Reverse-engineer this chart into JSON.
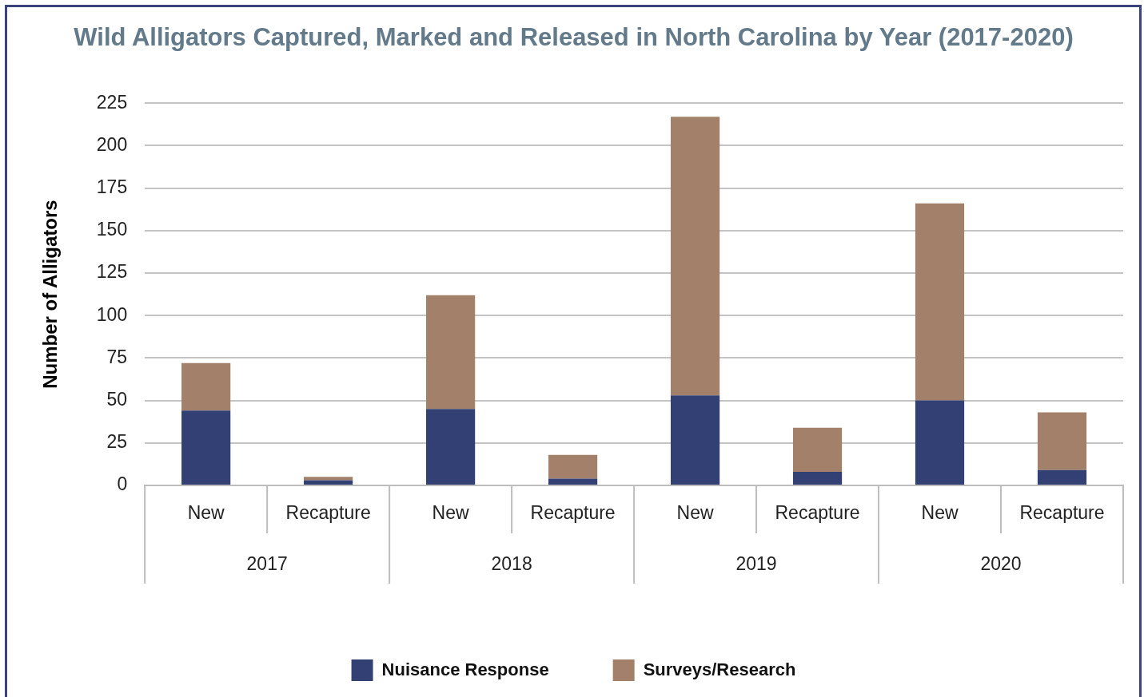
{
  "chart_data": {
    "type": "bar",
    "title": "Wild Alligators Captured, Marked and Released in North Carolina by Year (2017-2020)",
    "ylabel": "Number of Alligators",
    "categories": [
      "New",
      "Recapture",
      "New",
      "Recapture",
      "New",
      "Recapture",
      "New",
      "Recapture"
    ],
    "annotations": [
      "2017",
      "2018",
      "2019",
      "2020"
    ],
    "series": [
      {
        "name": "Nuisance Response",
        "color": "#334074",
        "values": [
          44,
          3,
          45,
          4,
          53,
          8,
          50,
          9
        ]
      },
      {
        "name": "Surveys/Research",
        "color": "#a3806a",
        "values": [
          28,
          2,
          67,
          14,
          164,
          26,
          116,
          34
        ]
      }
    ],
    "stacked": true,
    "ylim": [
      0,
      225
    ],
    "yticks": [
      0,
      25,
      50,
      75,
      100,
      125,
      150,
      175,
      200,
      225
    ],
    "grid": "y",
    "legend": "bottom"
  }
}
